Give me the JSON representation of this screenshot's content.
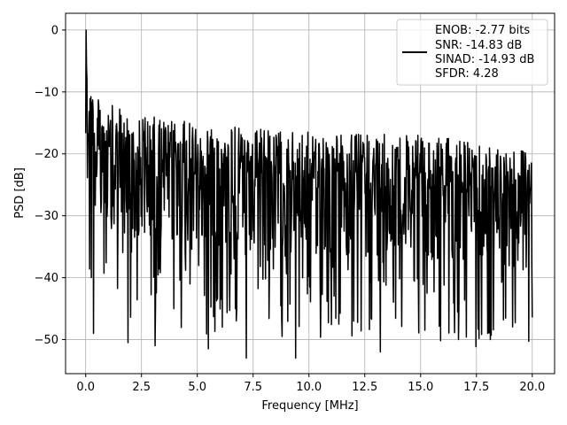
{
  "chart_data": {
    "type": "line",
    "xlabel": "Frequency [MHz]",
    "ylabel": "PSD [dB]",
    "xlim": [
      -0.9,
      21.0
    ],
    "ylim": [
      -55.5,
      2.7
    ],
    "xticks": [
      0.0,
      2.5,
      5.0,
      7.5,
      10.0,
      12.5,
      15.0,
      17.5,
      20.0
    ],
    "xtick_labels": [
      "0.0",
      "2.5",
      "5.0",
      "7.5",
      "10.0",
      "12.5",
      "15.0",
      "17.5",
      "20.0"
    ],
    "yticks": [
      0,
      -10,
      -20,
      -30,
      -40,
      -50
    ],
    "ytick_labels": [
      "0",
      "−10",
      "−20",
      "−30",
      "−40",
      "−50"
    ],
    "grid": true,
    "legend_position": "top-right",
    "legend_lines": [
      "ENOB: -2.77 bits",
      "SNR: -14.83 dB",
      "SINAD: -14.93 dB",
      "SFDR: 4.28"
    ],
    "series": [
      {
        "color": "#000000",
        "x_start": 0.0,
        "x_end": 20.0,
        "points": 1024,
        "peak": {
          "x": 0.02,
          "y": 0.0
        },
        "envelope_top": [
          {
            "x": 0.0,
            "y": -5
          },
          {
            "x": 0.5,
            "y": -11
          },
          {
            "x": 2.0,
            "y": -13.5
          },
          {
            "x": 5.0,
            "y": -15
          },
          {
            "x": 10.0,
            "y": -16.5
          },
          {
            "x": 15.0,
            "y": -17
          },
          {
            "x": 20.0,
            "y": -19
          }
        ],
        "notable_dips": [
          {
            "x": 0.35,
            "y": -49
          },
          {
            "x": 1.9,
            "y": -50.5
          },
          {
            "x": 3.1,
            "y": -51
          },
          {
            "x": 5.5,
            "y": -51.5
          },
          {
            "x": 7.2,
            "y": -53
          },
          {
            "x": 9.4,
            "y": -53
          },
          {
            "x": 13.2,
            "y": -52
          },
          {
            "x": 15.2,
            "y": -48.5
          },
          {
            "x": 16.7,
            "y": -50
          },
          {
            "x": 18.0,
            "y": -49
          }
        ]
      }
    ]
  }
}
